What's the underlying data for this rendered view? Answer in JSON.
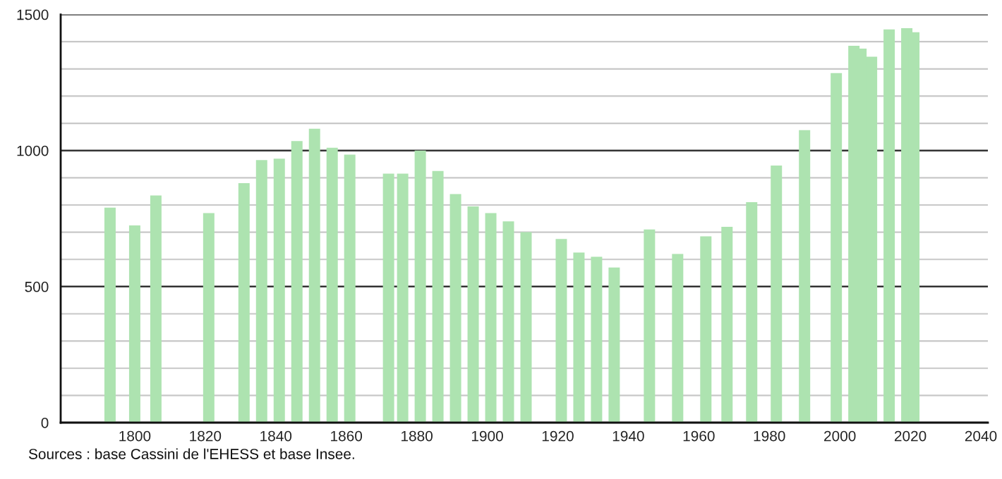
{
  "chart_data": {
    "type": "bar",
    "x": [
      1793,
      1800,
      1806,
      1821,
      1831,
      1836,
      1841,
      1846,
      1851,
      1856,
      1861,
      1872,
      1876,
      1881,
      1886,
      1891,
      1896,
      1901,
      1906,
      1911,
      1921,
      1926,
      1931,
      1936,
      1946,
      1954,
      1962,
      1968,
      1975,
      1982,
      1990,
      1999,
      2004,
      2006,
      2009,
      2014,
      2019,
      2021
    ],
    "values": [
      790,
      725,
      835,
      770,
      880,
      965,
      970,
      1035,
      1080,
      1010,
      985,
      915,
      915,
      1000,
      925,
      840,
      795,
      770,
      740,
      700,
      675,
      625,
      610,
      570,
      710,
      620,
      685,
      720,
      810,
      945,
      1075,
      1285,
      1385,
      1375,
      1345,
      1445,
      1450,
      1435
    ],
    "color": "#ade3b0",
    "xlim": [
      1779,
      2042
    ],
    "xticks": [
      1800,
      1820,
      1840,
      1860,
      1880,
      1900,
      1920,
      1940,
      1960,
      1980,
      2000,
      2020,
      2040
    ],
    "ylim": [
      0,
      1500
    ],
    "yticks": [
      0,
      {
        "value": 100,
        "label": null
      },
      {
        "value": 200,
        "label": null
      },
      {
        "value": 300,
        "label": null
      },
      {
        "value": 400,
        "label": null
      },
      500,
      {
        "value": 600,
        "label": null
      },
      {
        "value": 700,
        "label": null
      },
      {
        "value": 800,
        "label": null
      },
      {
        "value": 900,
        "label": null
      },
      1000,
      {
        "value": 1100,
        "label": null
      },
      {
        "value": 1200,
        "label": null
      },
      {
        "value": 1300,
        "label": null
      },
      {
        "value": 1400,
        "label": null
      },
      1500
    ],
    "grid": "y",
    "annotations": [
      "Sources : base Cassini de l'EHESS et base Insee."
    ]
  }
}
